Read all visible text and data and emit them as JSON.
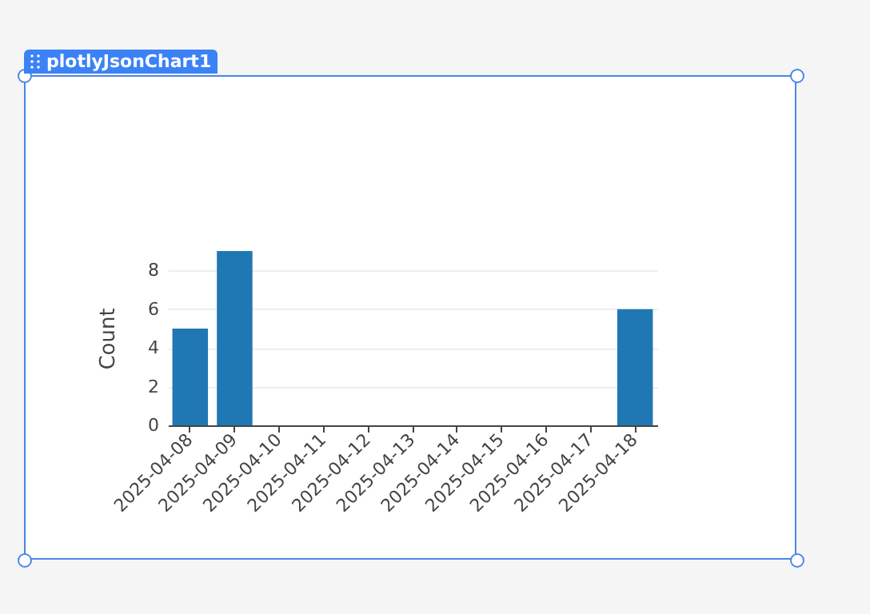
{
  "chart_data": {
    "type": "bar",
    "ylabel": "Count",
    "categories": [
      "2025-04-08",
      "2025-04-09",
      "2025-04-10",
      "2025-04-11",
      "2025-04-12",
      "2025-04-13",
      "2025-04-14",
      "2025-04-15",
      "2025-04-16",
      "2025-04-17",
      "2025-04-18"
    ],
    "values": [
      5,
      9,
      0,
      0,
      0,
      0,
      0,
      0,
      0,
      0,
      6
    ],
    "color": "#1f77b4",
    "ylim": [
      0,
      9
    ],
    "yticks": [
      0,
      2,
      4,
      6,
      8
    ],
    "grid": "y",
    "annotations": [
      "plotlyJsonChart1"
    ]
  }
}
